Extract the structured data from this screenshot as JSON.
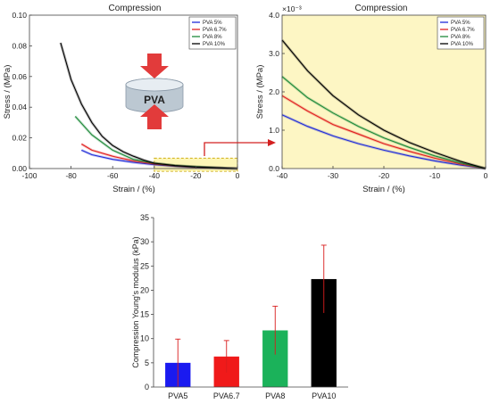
{
  "chart_data": [
    {
      "type": "line",
      "title": "Compression",
      "xlabel": "Strain / (%)",
      "ylabel": "Stress / (MPa)",
      "xlim": [
        -100,
        0
      ],
      "ylim": [
        0,
        0.1
      ],
      "xticks": [
        "-100",
        "-80",
        "-60",
        "-40",
        "-20",
        "0"
      ],
      "yticks": [
        "0.00",
        "0.02",
        "0.04",
        "0.06",
        "0.08",
        "0.10"
      ],
      "legend_position": "top-right",
      "inset_label": "PVA",
      "series": [
        {
          "name": "PVA 5%",
          "color": "#1f2bd8",
          "x": [
            -75,
            -70,
            -60,
            -50,
            -40,
            -30,
            -20,
            -10,
            0
          ],
          "y": [
            0.012,
            0.009,
            0.006,
            0.004,
            0.0025,
            0.0015,
            0.0008,
            0.0004,
            0
          ]
        },
        {
          "name": "PVA 6.7%",
          "color": "#e02020",
          "x": [
            -75,
            -70,
            -60,
            -50,
            -40,
            -30,
            -20,
            -10,
            0
          ],
          "y": [
            0.016,
            0.012,
            0.008,
            0.005,
            0.003,
            0.0018,
            0.001,
            0.0004,
            0
          ]
        },
        {
          "name": "PVA 8%",
          "color": "#1e8a3a",
          "x": [
            -78,
            -70,
            -60,
            -50,
            -40,
            -30,
            -20,
            -10,
            0
          ],
          "y": [
            0.034,
            0.022,
            0.012,
            0.006,
            0.0035,
            0.002,
            0.0012,
            0.0005,
            0
          ]
        },
        {
          "name": "PVA 10%",
          "color": "#000000",
          "x": [
            -85,
            -80,
            -75,
            -70,
            -65,
            -60,
            -55,
            -50,
            -45,
            -40,
            -30,
            -20,
            -10,
            0
          ],
          "y": [
            0.082,
            0.058,
            0.042,
            0.03,
            0.021,
            0.015,
            0.011,
            0.008,
            0.0055,
            0.0035,
            0.0019,
            0.001,
            0.0005,
            0
          ]
        }
      ]
    },
    {
      "type": "line",
      "title": "Compression",
      "xlabel": "Strain / (%)",
      "ylabel": "Stress / (MPa)",
      "y_multiplier": "×10⁻³",
      "xlim": [
        -40,
        0
      ],
      "ylim": [
        0,
        4
      ],
      "xticks": [
        "-40",
        "-30",
        "-20",
        "-10",
        "0"
      ],
      "yticks": [
        "0.0",
        "1.0",
        "2.0",
        "3.0",
        "4.0"
      ],
      "legend_position": "top-right",
      "series": [
        {
          "name": "PVA 5%",
          "color": "#1f2bd8",
          "x": [
            -40,
            -35,
            -30,
            -25,
            -20,
            -15,
            -10,
            -5,
            0
          ],
          "y": [
            1.4,
            1.1,
            0.85,
            0.65,
            0.48,
            0.33,
            0.2,
            0.09,
            0
          ]
        },
        {
          "name": "PVA 6.7%",
          "color": "#e02020",
          "x": [
            -40,
            -35,
            -30,
            -25,
            -20,
            -15,
            -10,
            -5,
            0
          ],
          "y": [
            1.9,
            1.5,
            1.15,
            0.9,
            0.65,
            0.45,
            0.27,
            0.12,
            0
          ]
        },
        {
          "name": "PVA 8%",
          "color": "#1e8a3a",
          "x": [
            -40,
            -35,
            -30,
            -25,
            -20,
            -15,
            -10,
            -5,
            0
          ],
          "y": [
            2.4,
            1.85,
            1.45,
            1.1,
            0.8,
            0.55,
            0.33,
            0.15,
            0
          ]
        },
        {
          "name": "PVA 10%",
          "color": "#000000",
          "x": [
            -40,
            -35,
            -30,
            -25,
            -20,
            -15,
            -10,
            -5,
            0
          ],
          "y": [
            3.35,
            2.55,
            1.9,
            1.4,
            1.0,
            0.68,
            0.42,
            0.19,
            0
          ]
        }
      ]
    },
    {
      "type": "bar",
      "title": "",
      "xlabel": "",
      "ylabel": "Compression Young's modulus (kPa)",
      "ylim": [
        0,
        35
      ],
      "yticks": [
        "0",
        "5",
        "10",
        "15",
        "20",
        "25",
        "30",
        "35"
      ],
      "categories": [
        "PVA5",
        "PVA6.7",
        "PVA8",
        "PVA10"
      ],
      "values": [
        5.0,
        6.3,
        11.7,
        22.3
      ],
      "errors": [
        4.9,
        3.3,
        5.0,
        7.0
      ],
      "colors": [
        "#1a1af0",
        "#f01a1a",
        "#1bb25a",
        "#000000"
      ]
    }
  ]
}
